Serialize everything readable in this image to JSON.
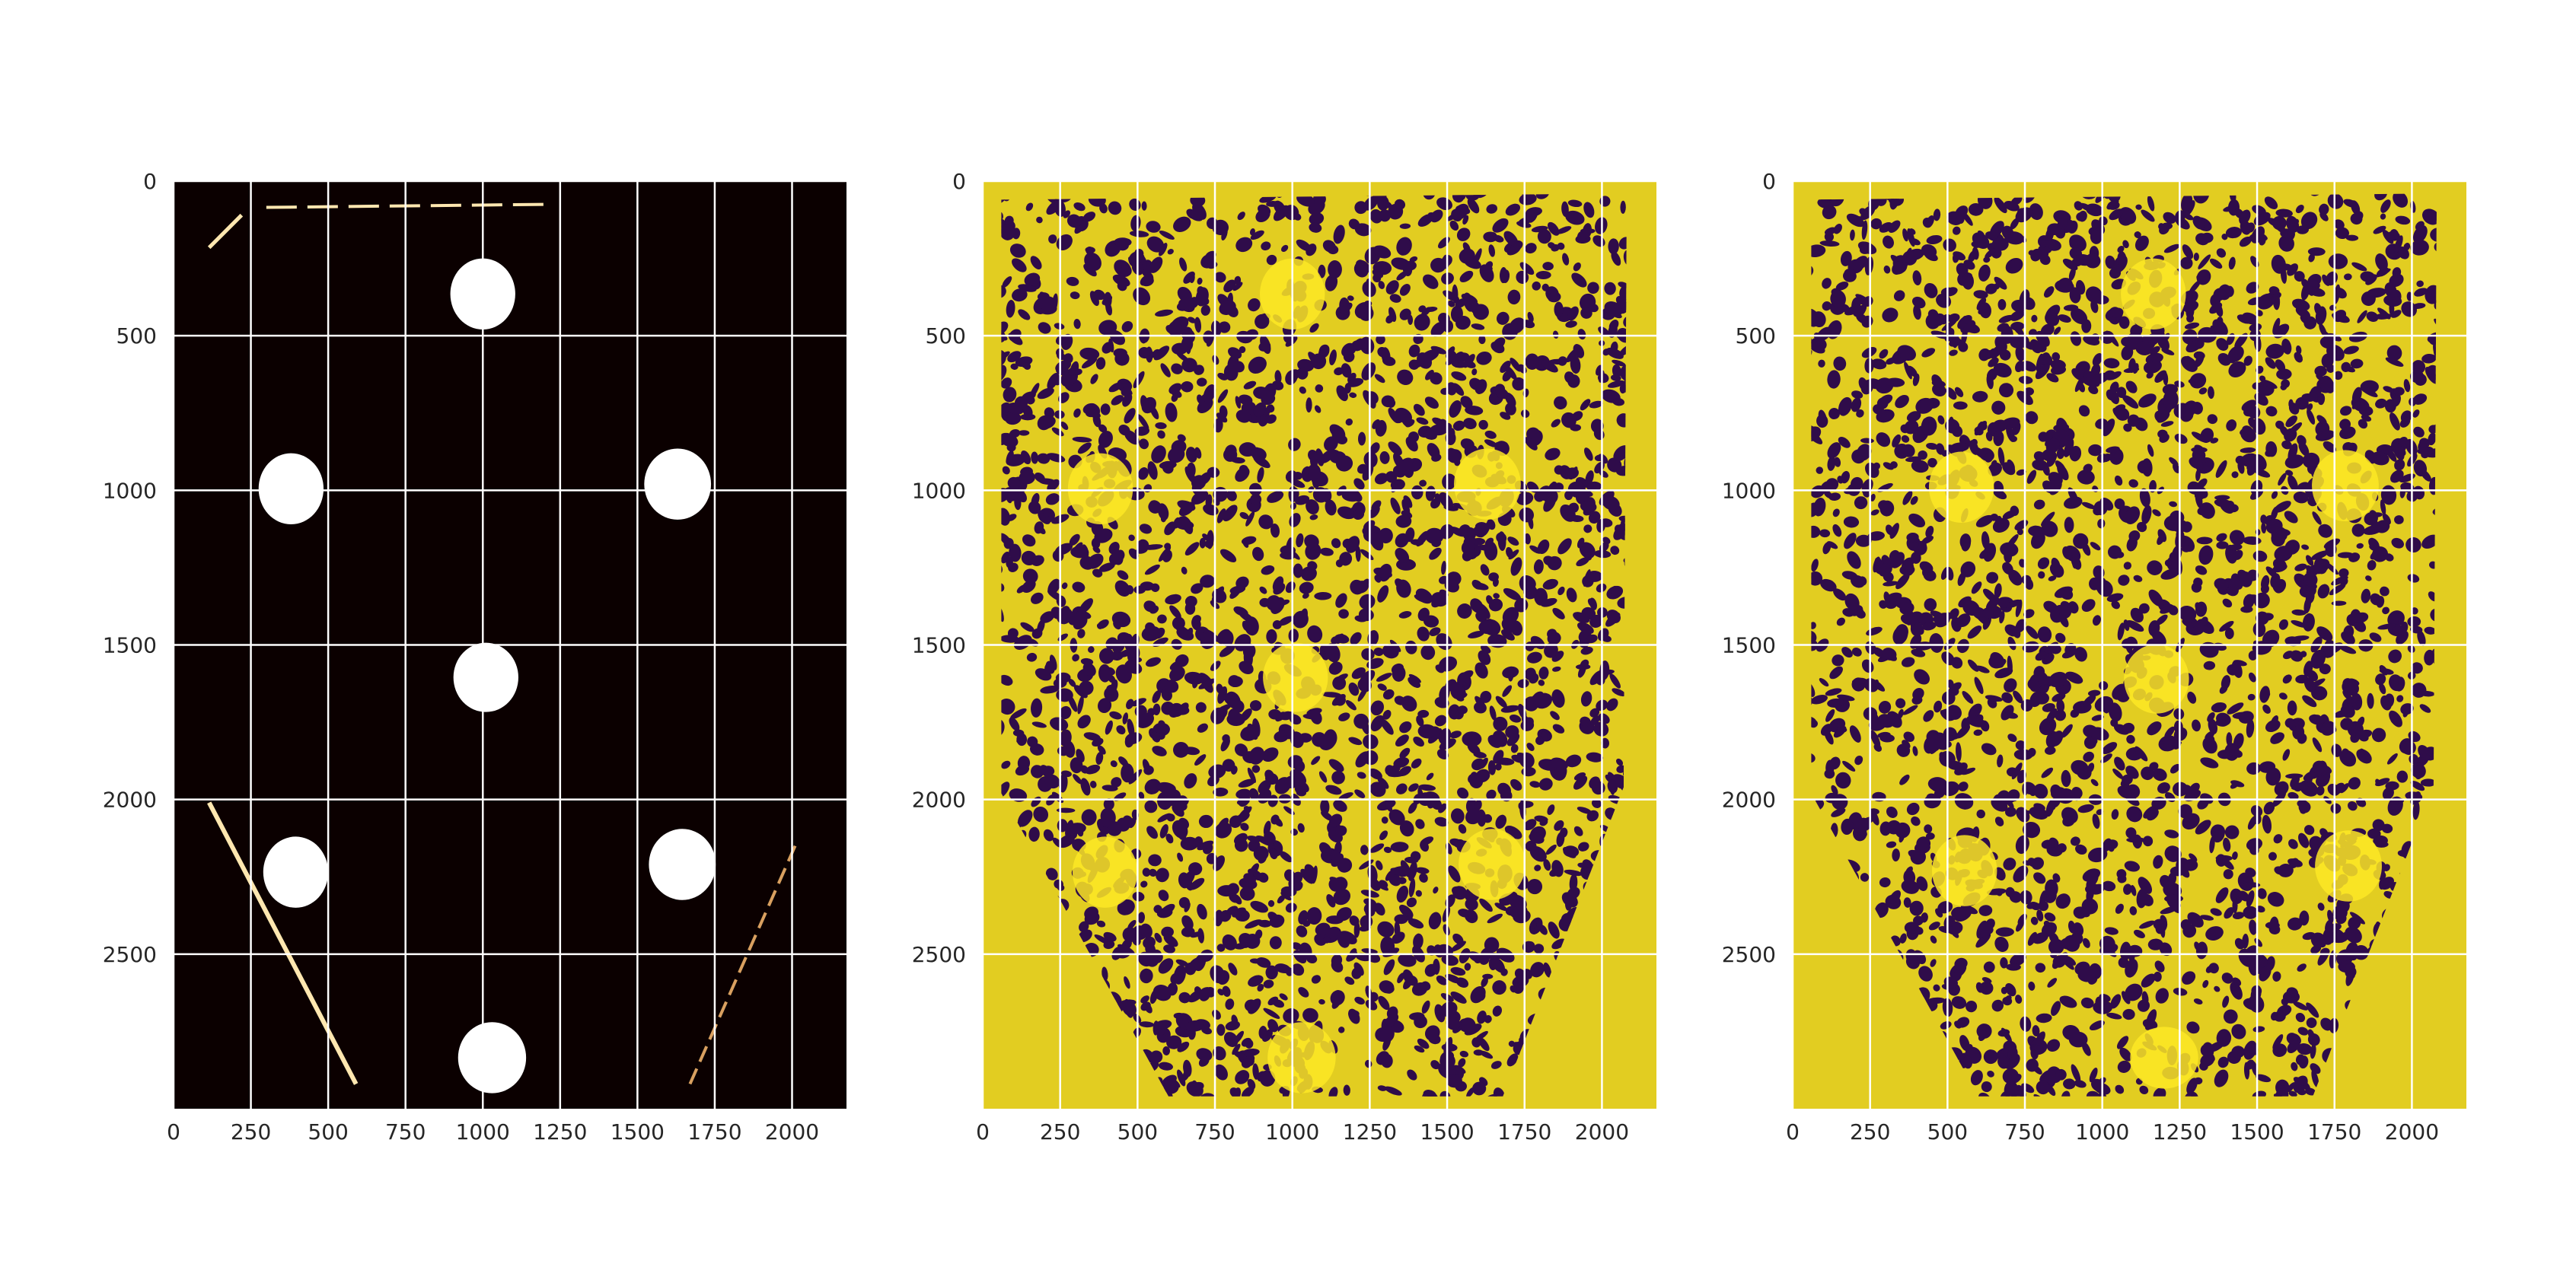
{
  "figure": {
    "title": ""
  },
  "colors": {
    "background": "#ffffff",
    "grid": "#ffffff",
    "tick_text": "#262626",
    "mask_background": "#0b0000",
    "mask_foreground": "#ffffff",
    "viridis_low": "#2f0c4a",
    "viridis_high": "#e2cd21",
    "viridis_highlight": "#fde725"
  },
  "chart_data": [
    {
      "type": "heatmap",
      "colormap": "hot (binary mask)",
      "title": "",
      "xlabel": "",
      "ylabel": "",
      "xlim": [
        0,
        2176
      ],
      "ylim": [
        3000,
        0
      ],
      "xticks": [
        0,
        250,
        500,
        750,
        1000,
        1250,
        1500,
        1750,
        2000
      ],
      "yticks": [
        0,
        500,
        1000,
        1500,
        2000,
        2500
      ],
      "xtick_labels": [
        "0",
        "250",
        "500",
        "750",
        "1000",
        "1250",
        "1500",
        "1750",
        "2000"
      ],
      "ytick_labels": [
        "0",
        "500",
        "1000",
        "1500",
        "2000",
        "2500"
      ],
      "grid": true,
      "blobs": [
        {
          "cx": 1000,
          "cy": 365,
          "rx": 105,
          "ry": 115
        },
        {
          "cx": 380,
          "cy": 995,
          "rx": 105,
          "ry": 115
        },
        {
          "cx": 1630,
          "cy": 980,
          "rx": 108,
          "ry": 115
        },
        {
          "cx": 1010,
          "cy": 1605,
          "rx": 105,
          "ry": 112
        },
        {
          "cx": 395,
          "cy": 2235,
          "rx": 105,
          "ry": 115
        },
        {
          "cx": 1645,
          "cy": 2210,
          "rx": 108,
          "ry": 115
        },
        {
          "cx": 1030,
          "cy": 2835,
          "rx": 110,
          "ry": 115
        }
      ]
    },
    {
      "type": "heatmap",
      "colormap": "viridis (binary)",
      "title": "",
      "xlabel": "",
      "ylabel": "",
      "xlim": [
        0,
        2176
      ],
      "ylim": [
        3000,
        0
      ],
      "xticks": [
        0,
        250,
        500,
        750,
        1000,
        1250,
        1500,
        1750,
        2000
      ],
      "yticks": [
        0,
        500,
        1000,
        1500,
        2000,
        2500
      ],
      "xtick_labels": [
        "0",
        "250",
        "500",
        "750",
        "1000",
        "1250",
        "1500",
        "1750",
        "2000"
      ],
      "ytick_labels": [
        "0",
        "500",
        "1000",
        "1500",
        "2000",
        "2500"
      ],
      "grid": true,
      "blobs": [
        {
          "cx": 1000,
          "cy": 365,
          "rx": 105,
          "ry": 115
        },
        {
          "cx": 380,
          "cy": 995,
          "rx": 105,
          "ry": 115
        },
        {
          "cx": 1630,
          "cy": 980,
          "rx": 108,
          "ry": 115
        },
        {
          "cx": 1010,
          "cy": 1605,
          "rx": 105,
          "ry": 112
        },
        {
          "cx": 395,
          "cy": 2235,
          "rx": 105,
          "ry": 115
        },
        {
          "cx": 1645,
          "cy": 2210,
          "rx": 108,
          "ry": 115
        },
        {
          "cx": 1030,
          "cy": 2835,
          "rx": 110,
          "ry": 115
        }
      ]
    },
    {
      "type": "heatmap",
      "colormap": "viridis (binary)",
      "title": "",
      "xlabel": "",
      "ylabel": "",
      "xlim": [
        0,
        2176
      ],
      "ylim": [
        3000,
        0
      ],
      "xticks": [
        0,
        250,
        500,
        750,
        1000,
        1250,
        1500,
        1750,
        2000
      ],
      "yticks": [
        0,
        500,
        1000,
        1500,
        2000,
        2500
      ],
      "xtick_labels": [
        "0",
        "250",
        "500",
        "750",
        "1000",
        "1250",
        "1500",
        "1750",
        "2000"
      ],
      "ytick_labels": [
        "0",
        "500",
        "1000",
        "1500",
        "2000",
        "2500"
      ],
      "grid": true,
      "blobs": [
        {
          "cx": 1165,
          "cy": 365,
          "rx": 105,
          "ry": 115
        },
        {
          "cx": 545,
          "cy": 990,
          "rx": 105,
          "ry": 115
        },
        {
          "cx": 1785,
          "cy": 985,
          "rx": 108,
          "ry": 115
        },
        {
          "cx": 1175,
          "cy": 1610,
          "rx": 105,
          "ry": 112
        },
        {
          "cx": 555,
          "cy": 2230,
          "rx": 105,
          "ry": 115
        },
        {
          "cx": 1795,
          "cy": 2215,
          "rx": 108,
          "ry": 115
        },
        {
          "cx": 1200,
          "cy": 2835,
          "rx": 110,
          "ry": 100
        }
      ]
    }
  ]
}
